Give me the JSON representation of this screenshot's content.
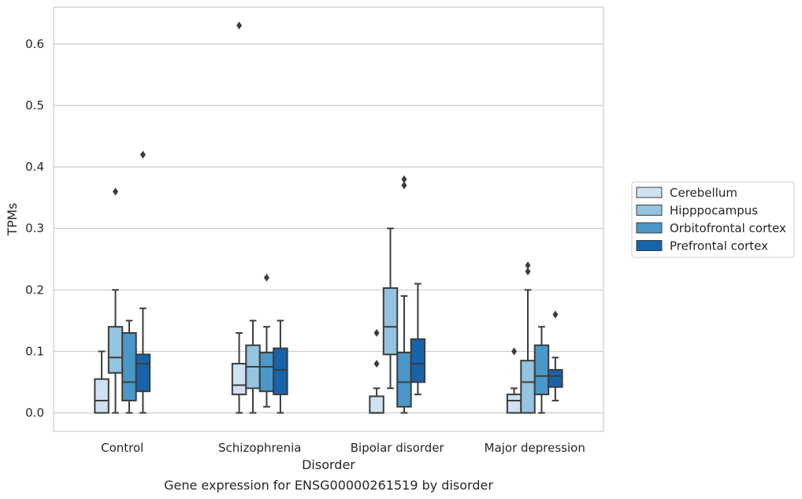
{
  "chart_data": {
    "type": "box",
    "title": "",
    "caption": "Gene expression for ENSG00000261519 by disorder",
    "xlabel": "Disorder",
    "ylabel": "TPMs",
    "ylim": [
      -0.03,
      0.66
    ],
    "yticks": [
      "0.0",
      "0.1",
      "0.2",
      "0.3",
      "0.4",
      "0.5",
      "0.6"
    ],
    "grid": "horizontal",
    "legend_position": "right",
    "categories": [
      "Control",
      "Schizophrenia",
      "Bipolar disorder",
      "Major depression"
    ],
    "series": [
      {
        "name": "Cerebellum",
        "color": "#d0e1f2",
        "boxes": [
          {
            "whislo": 0.0,
            "q1": 0.0,
            "med": 0.02,
            "q3": 0.055,
            "whishi": 0.1,
            "fliers": []
          },
          {
            "whislo": 0.0,
            "q1": 0.03,
            "med": 0.045,
            "q3": 0.08,
            "whishi": 0.13,
            "fliers": [
              0.63
            ]
          },
          {
            "whislo": 0.0,
            "q1": 0.0,
            "med": 0.0,
            "q3": 0.027,
            "whishi": 0.04,
            "fliers": [
              0.08,
              0.13
            ]
          },
          {
            "whislo": 0.0,
            "q1": 0.0,
            "med": 0.02,
            "q3": 0.03,
            "whishi": 0.04,
            "fliers": [
              0.1
            ]
          }
        ]
      },
      {
        "name": "Hipppocampus",
        "color": "#94c4df",
        "boxes": [
          {
            "whislo": 0.0,
            "q1": 0.065,
            "med": 0.09,
            "q3": 0.14,
            "whishi": 0.2,
            "fliers": [
              0.36
            ]
          },
          {
            "whislo": 0.0,
            "q1": 0.04,
            "med": 0.075,
            "q3": 0.11,
            "whishi": 0.15,
            "fliers": []
          },
          {
            "whislo": 0.04,
            "q1": 0.095,
            "med": 0.14,
            "q3": 0.203,
            "whishi": 0.3,
            "fliers": []
          },
          {
            "whislo": 0.0,
            "q1": 0.0,
            "med": 0.05,
            "q3": 0.085,
            "whishi": 0.2,
            "fliers": [
              0.23,
              0.24
            ]
          }
        ]
      },
      {
        "name": "Orbitofrontal cortex",
        "color": "#4a98c9",
        "boxes": [
          {
            "whislo": 0.0,
            "q1": 0.02,
            "med": 0.05,
            "q3": 0.13,
            "whishi": 0.15,
            "fliers": []
          },
          {
            "whislo": 0.01,
            "q1": 0.035,
            "med": 0.075,
            "q3": 0.098,
            "whishi": 0.14,
            "fliers": [
              0.22
            ]
          },
          {
            "whislo": 0.0,
            "q1": 0.01,
            "med": 0.05,
            "q3": 0.098,
            "whishi": 0.19,
            "fliers": [
              0.37,
              0.38
            ]
          },
          {
            "whislo": 0.0,
            "q1": 0.03,
            "med": 0.06,
            "q3": 0.11,
            "whishi": 0.14,
            "fliers": []
          }
        ]
      },
      {
        "name": "Prefrontal cortex",
        "color": "#1764ab",
        "boxes": [
          {
            "whislo": 0.0,
            "q1": 0.035,
            "med": 0.08,
            "q3": 0.095,
            "whishi": 0.17,
            "fliers": [
              0.42
            ]
          },
          {
            "whislo": 0.0,
            "q1": 0.03,
            "med": 0.07,
            "q3": 0.105,
            "whishi": 0.15,
            "fliers": []
          },
          {
            "whislo": 0.03,
            "q1": 0.05,
            "med": 0.08,
            "q3": 0.12,
            "whishi": 0.21,
            "fliers": []
          },
          {
            "whislo": 0.02,
            "q1": 0.042,
            "med": 0.06,
            "q3": 0.07,
            "whishi": 0.09,
            "fliers": [
              0.16
            ]
          }
        ]
      }
    ]
  }
}
